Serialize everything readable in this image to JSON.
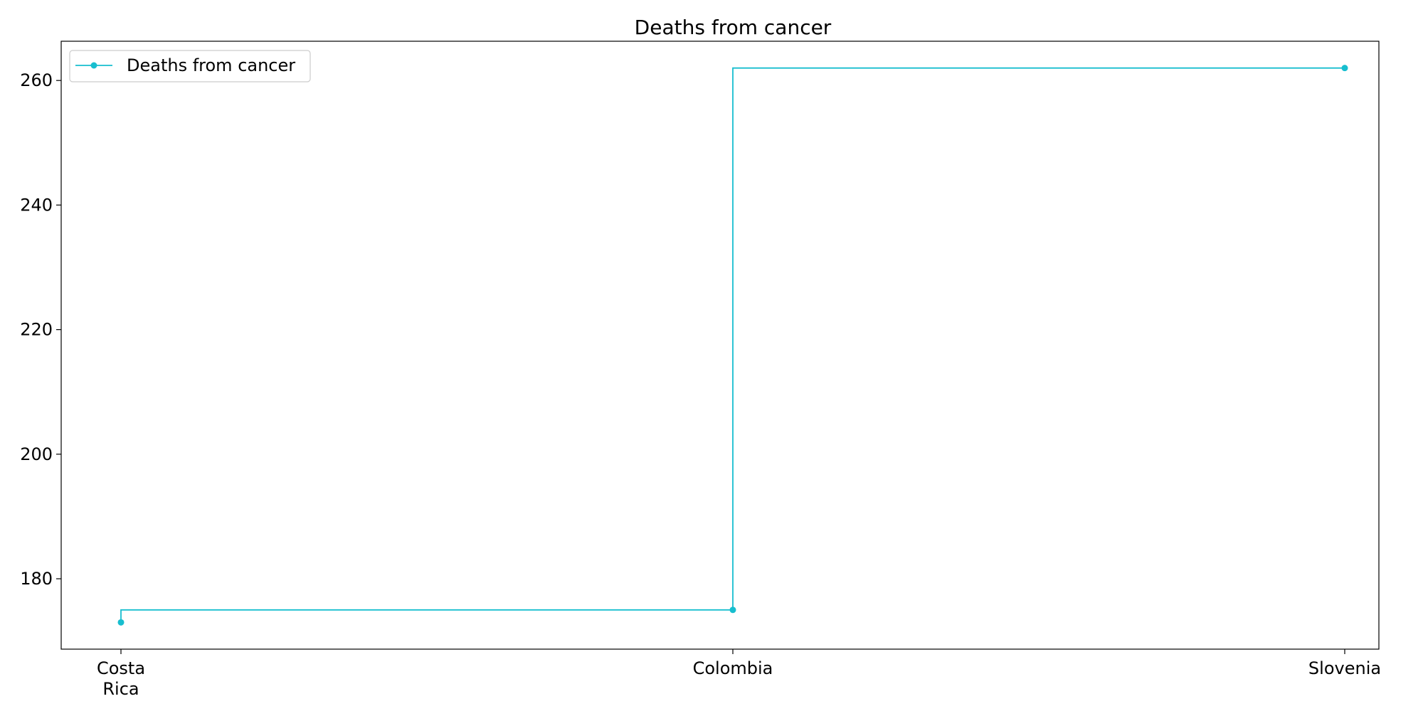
{
  "chart_data": {
    "type": "line",
    "title": "Deaths from cancer",
    "xlabel": "",
    "ylabel": "",
    "categories": [
      "Costa\nRica",
      "Colombia",
      "Slovenia"
    ],
    "series": [
      {
        "name": "Deaths from cancer",
        "values": [
          173,
          175,
          262
        ],
        "color": "#17becf",
        "drawstyle": "steps-pre",
        "marker": "circle"
      }
    ],
    "ylim": [
      168.7,
      266.3
    ],
    "yticks": [
      180,
      200,
      220,
      240,
      260
    ],
    "grid": false,
    "legend": "upper-left"
  }
}
